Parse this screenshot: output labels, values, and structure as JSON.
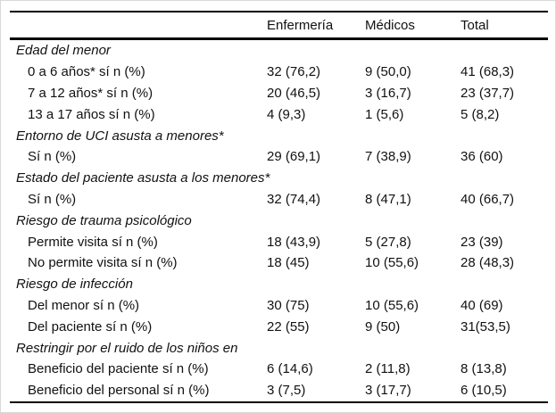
{
  "page": {
    "background": "#ffffff",
    "frame_color": "#d9d9d9",
    "rule_color": "#000000",
    "text_color": "#111111"
  },
  "table": {
    "columns": [
      "",
      "Enfermería",
      "Médicos",
      "Total"
    ],
    "sections": [
      {
        "header": "Edad del menor",
        "rows": [
          {
            "label": "0 a 6 años* sí n (%)",
            "values": [
              "32 (76,2)",
              "9 (50,0)",
              "41 (68,3)"
            ]
          },
          {
            "label": "7 a 12 años* sí n (%)",
            "values": [
              "20 (46,5)",
              "3 (16,7)",
              "23 (37,7)"
            ]
          },
          {
            "label": "13 a 17 años sí n (%)",
            "values": [
              "4 (9,3)",
              "1 (5,6)",
              "5 (8,2)"
            ]
          }
        ]
      },
      {
        "header": "Entorno de UCI asusta a menores*",
        "rows": [
          {
            "label": "Sí n (%)",
            "values": [
              "29 (69,1)",
              "7 (38,9)",
              "36 (60)"
            ]
          }
        ]
      },
      {
        "header": "Estado del paciente asusta a los menores*",
        "rows": [
          {
            "label": "Sí n (%)",
            "values": [
              "32 (74,4)",
              "8 (47,1)",
              "40 (66,7)"
            ]
          }
        ]
      },
      {
        "header": "Riesgo de trauma psicológico",
        "rows": [
          {
            "label": "Permite visita sí n (%)",
            "values": [
              "18 (43,9)",
              "5 (27,8)",
              "23 (39)"
            ]
          },
          {
            "label": "No permite visita sí n (%)",
            "values": [
              "18 (45)",
              "10 (55,6)",
              "28 (48,3)"
            ]
          }
        ]
      },
      {
        "header": "Riesgo de infección",
        "rows": [
          {
            "label": "Del menor sí n (%)",
            "values": [
              "30 (75)",
              "10 (55,6)",
              "40 (69)"
            ]
          },
          {
            "label": "Del paciente sí n (%)",
            "values": [
              "22 (55)",
              "9 (50)",
              "31(53,5)"
            ]
          }
        ]
      },
      {
        "header": "Restringir por el ruido de los niños en",
        "rows": [
          {
            "label": "Beneficio del paciente sí n (%)",
            "values": [
              "6 (14,6)",
              "2 (11,8)",
              "8 (13,8)"
            ]
          },
          {
            "label": "Beneficio del personal sí n (%)",
            "values": [
              "3 (7,5)",
              "3 (17,7)",
              "6 (10,5)"
            ]
          }
        ]
      }
    ]
  }
}
